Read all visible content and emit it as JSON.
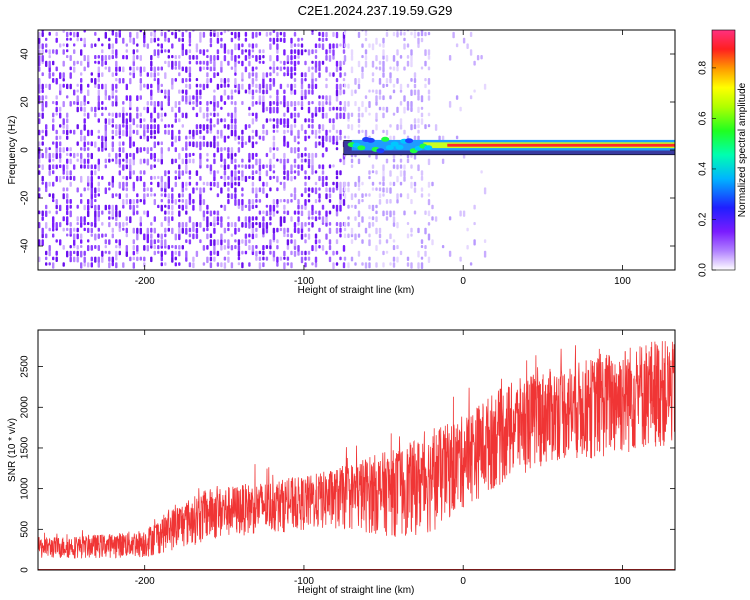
{
  "title": "C2E1.2024.237.19.59.G29",
  "chart_data": [
    {
      "type": "heatmap",
      "xlabel": "Height of straight line (km)",
      "ylabel": "Frequency (Hz)",
      "xlim": [
        -267,
        133
      ],
      "ylim": [
        -50,
        50
      ],
      "x_ticks": [
        -200,
        -100,
        0,
        100
      ],
      "y_ticks": [
        -40,
        -20,
        0,
        20,
        40
      ],
      "colorbar": {
        "label": "Normalized spectral amplitude",
        "range": [
          0,
          0.95
        ],
        "ticks": [
          0,
          0.2,
          0.4,
          0.6,
          0.8
        ],
        "tick_labels": [
          "0.0",
          "0.2",
          "0.4",
          "0.6",
          "0.8"
        ]
      },
      "regions": [
        {
          "name": "broadband noise",
          "x_range": [
            -267,
            -75
          ],
          "density": "high",
          "amplitude": 0.1
        },
        {
          "name": "fading noise",
          "x_range": [
            -75,
            -20
          ],
          "density": "medium",
          "amplitude": 0.05
        },
        {
          "name": "sparse noise",
          "x_range": [
            -20,
            15
          ],
          "density": "low",
          "amplitude": 0.03
        },
        {
          "name": "carrier line",
          "x_range": [
            -70,
            133
          ],
          "frequency_hz": 2,
          "amplitude": 0.9
        }
      ]
    },
    {
      "type": "line",
      "xlabel": "Height of straight line (km)",
      "ylabel": "SNR (10 * v/v)",
      "xlim": [
        -267,
        133
      ],
      "ylim": [
        0,
        2950
      ],
      "x_ticks": [
        -200,
        -100,
        0,
        100
      ],
      "y_ticks": [
        0,
        500,
        1000,
        1500,
        2000,
        2500
      ],
      "color": "#f03535",
      "series": [
        {
          "name": "",
          "x": [
            -267,
            -240,
            -220,
            -200,
            -180,
            -160,
            -140,
            -120,
            -100,
            -80,
            -60,
            -40,
            -20,
            0,
            20,
            40,
            60,
            80,
            100,
            120,
            133
          ],
          "low": [
            140,
            140,
            150,
            150,
            250,
            350,
            420,
            450,
            480,
            500,
            450,
            400,
            450,
            750,
            1000,
            1200,
            1350,
            1350,
            1400,
            1500,
            1500
          ],
          "high": [
            400,
            420,
            450,
            500,
            800,
            1000,
            1050,
            1100,
            1150,
            1250,
            1400,
            1500,
            1700,
            1900,
            2200,
            2400,
            2500,
            2600,
            2750,
            2850,
            2800
          ]
        }
      ]
    }
  ]
}
